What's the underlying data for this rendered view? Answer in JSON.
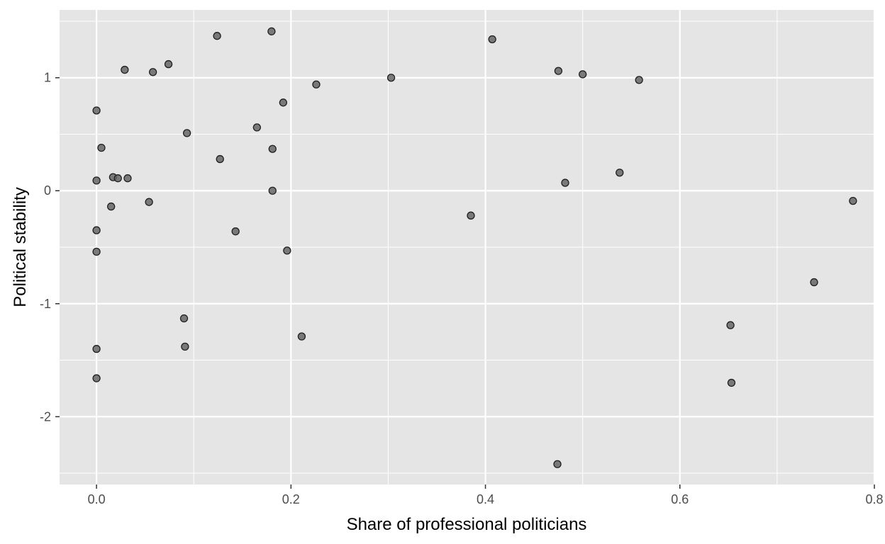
{
  "chart_data": {
    "type": "scatter",
    "title": "",
    "xlabel": "Share of professional politicians",
    "ylabel": "Political stability",
    "xlim": [
      -0.038,
      0.8
    ],
    "ylim": [
      -2.6,
      1.6
    ],
    "x_ticks": [
      0.0,
      0.2,
      0.4,
      0.6,
      0.8
    ],
    "x_tick_labels": [
      "0.0",
      "0.2",
      "0.4",
      "0.6",
      "0.8"
    ],
    "y_ticks": [
      -2,
      -1,
      0,
      1
    ],
    "y_tick_labels": [
      "-2",
      "-1",
      "0",
      "1"
    ],
    "grid": true,
    "legend": "none",
    "colors": {
      "panel": "#e5e5e5",
      "grid": "#ffffff",
      "point_fill": "#666666",
      "point_stroke": "#1f1f1f",
      "tick_label": "#4d4d4d",
      "axis_title": "#000000"
    },
    "points": [
      {
        "x": 0.0,
        "y": 0.71
      },
      {
        "x": 0.0,
        "y": 0.09
      },
      {
        "x": 0.0,
        "y": -0.35
      },
      {
        "x": 0.0,
        "y": -0.54
      },
      {
        "x": 0.0,
        "y": -1.4
      },
      {
        "x": 0.0,
        "y": -1.66
      },
      {
        "x": 0.005,
        "y": 0.38
      },
      {
        "x": 0.015,
        "y": -0.14
      },
      {
        "x": 0.017,
        "y": 0.12
      },
      {
        "x": 0.022,
        "y": 0.11
      },
      {
        "x": 0.029,
        "y": 1.07
      },
      {
        "x": 0.032,
        "y": 0.11
      },
      {
        "x": 0.054,
        "y": -0.1
      },
      {
        "x": 0.058,
        "y": 1.05
      },
      {
        "x": 0.074,
        "y": 1.12
      },
      {
        "x": 0.09,
        "y": -1.13
      },
      {
        "x": 0.091,
        "y": -1.38
      },
      {
        "x": 0.093,
        "y": 0.51
      },
      {
        "x": 0.124,
        "y": 1.37
      },
      {
        "x": 0.127,
        "y": 0.28
      },
      {
        "x": 0.143,
        "y": -0.36
      },
      {
        "x": 0.165,
        "y": 0.56
      },
      {
        "x": 0.18,
        "y": 1.41
      },
      {
        "x": 0.181,
        "y": 0.37
      },
      {
        "x": 0.181,
        "y": 0.0
      },
      {
        "x": 0.192,
        "y": 0.78
      },
      {
        "x": 0.196,
        "y": -0.53
      },
      {
        "x": 0.211,
        "y": -1.29
      },
      {
        "x": 0.226,
        "y": 0.94
      },
      {
        "x": 0.303,
        "y": 1.0
      },
      {
        "x": 0.385,
        "y": -0.22
      },
      {
        "x": 0.407,
        "y": 1.34
      },
      {
        "x": 0.474,
        "y": -2.42
      },
      {
        "x": 0.475,
        "y": 1.06
      },
      {
        "x": 0.482,
        "y": 0.07
      },
      {
        "x": 0.5,
        "y": 1.03
      },
      {
        "x": 0.538,
        "y": 0.16
      },
      {
        "x": 0.558,
        "y": 0.98
      },
      {
        "x": 0.652,
        "y": -1.19
      },
      {
        "x": 0.653,
        "y": -1.7
      },
      {
        "x": 0.738,
        "y": -0.81
      },
      {
        "x": 0.778,
        "y": -0.09
      }
    ]
  }
}
